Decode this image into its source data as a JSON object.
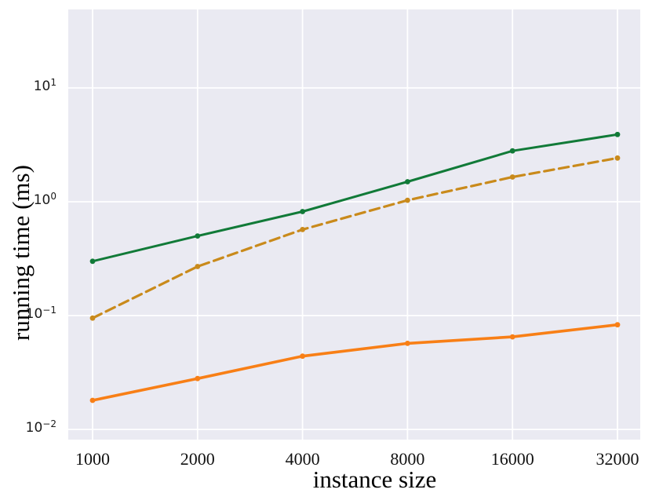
{
  "figure": {
    "background": "#ffffff",
    "plot_background": "#eaeaf2",
    "grid_color": "#ffffff",
    "tick_color": "#1a1a1a"
  },
  "chart_data": {
    "type": "line",
    "title": "",
    "xlabel": "instance size",
    "ylabel": "running time (ms)",
    "x_scale": "log2",
    "y_scale": "log10",
    "grid": true,
    "legend": false,
    "x": [
      1000,
      2000,
      4000,
      8000,
      16000,
      32000
    ],
    "x_tick_labels": [
      "1000",
      "2000",
      "4000",
      "8000",
      "16000",
      "32000"
    ],
    "y_tick_exponents": [
      1,
      0,
      -1,
      -2
    ],
    "xlim": [
      850,
      37400
    ],
    "ylim": [
      0.008,
      49
    ],
    "series": [
      {
        "name": "green-solid",
        "color": "#117a38",
        "line_style": "solid",
        "marker": "dot",
        "values": [
          0.3,
          0.5,
          0.82,
          1.5,
          2.8,
          3.9
        ]
      },
      {
        "name": "gold-dashed",
        "color": "#c98a1b",
        "line_style": "dashed",
        "marker": "dot",
        "values": [
          0.095,
          0.27,
          0.57,
          1.03,
          1.65,
          2.42
        ]
      },
      {
        "name": "orange-solid",
        "color": "#f87f16",
        "line_style": "solid",
        "marker": "dot",
        "values": [
          0.018,
          0.028,
          0.044,
          0.057,
          0.065,
          0.083
        ]
      }
    ]
  }
}
